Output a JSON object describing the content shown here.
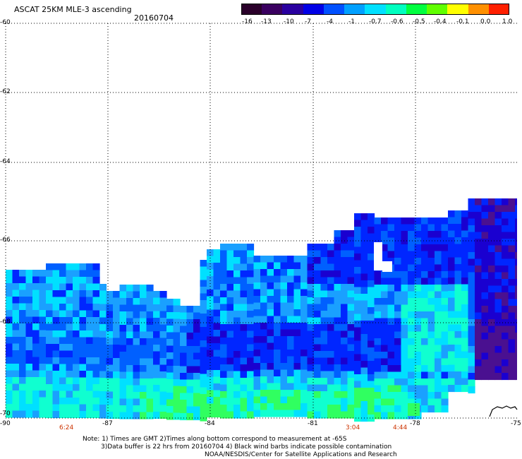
{
  "header": {
    "title": "ASCAT 25KM MLE-3 ascending",
    "date": "20160704"
  },
  "colorbar": {
    "labels": [
      "-16",
      "-13",
      "-10",
      "-7",
      "-4",
      "-1",
      "-0.7",
      "-0.6",
      "-0.5",
      "-0.4",
      "-0.1",
      "0.0",
      "1.0"
    ],
    "colors": [
      "#2a002a",
      "#3a0060",
      "#2a00a0",
      "#0000e6",
      "#0050ff",
      "#00a0ff",
      "#00e0ff",
      "#00ffc0",
      "#00ff40",
      "#60ff00",
      "#ffff00",
      "#ff9000",
      "#ff2000"
    ]
  },
  "map": {
    "lon_ticks": [
      "-90",
      "-87",
      "-84",
      "-81",
      "-78",
      "-75"
    ],
    "lat_ticks": [
      "-60",
      "-62",
      "-64",
      "-66",
      "-68",
      "-70"
    ],
    "time_labels": [
      "6:24",
      "3:04",
      "4:44"
    ],
    "palette": {
      "deep_purple": "#4a1090",
      "dark_blue": "#1a00d0",
      "blue": "#0026ff",
      "mid_blue": "#0060ff",
      "light_blue": "#1aa0ff",
      "cyan": "#00e0ff",
      "aqua": "#10ffd0",
      "green": "#30ff60"
    }
  },
  "footer": {
    "note_line1": "Note: 1) Times are GMT 2)Times along bottom correspond to measurement at -65S",
    "note_line2": "3)Data buffer is 22 hrs from 20160704 4) Black wind barbs indicate possible contamination",
    "credit": "NOAA/NESDIS/Center for Satellite Applications and Research"
  }
}
